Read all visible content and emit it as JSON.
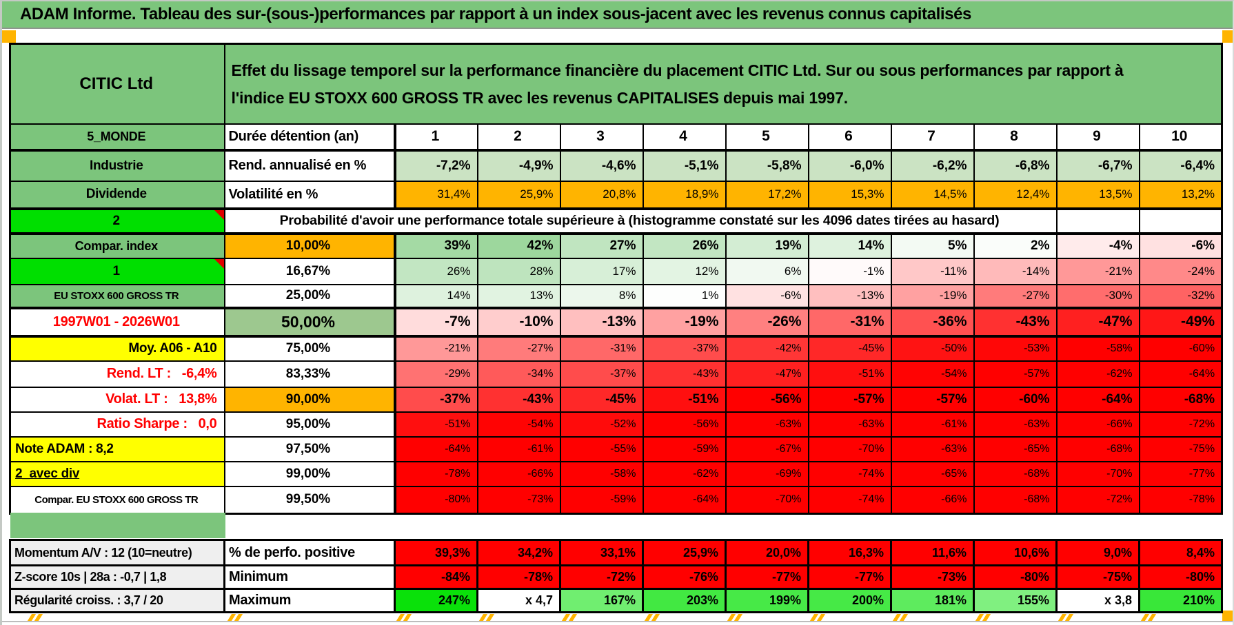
{
  "title": "ADAM Informe. Tableau des sur-(sous-)performances par rapport à un index sous-jacent avec les revenus connus capitalisés",
  "header": {
    "name": "CITIC Ltd",
    "description": "Effet du lissage temporel sur la performance financière du placement CITIC Ltd. Sur ou sous performances par rapport à l'indice EU STOXX 600 GROSS TR avec les revenus CAPITALISES depuis mai 1997."
  },
  "colors": {
    "green": "#7CC57C",
    "sage": "#9DC88F",
    "bright_green": "#00DF00",
    "light_green": "#CBE3C3",
    "orange": "#FFB400",
    "yellow": "#FFFF00",
    "red": "#FF0000",
    "gray_label": "#EFEFEF"
  },
  "table": {
    "duration_header": {
      "label_a": "5_MONDE",
      "label_b": "Durée détention (an)"
    },
    "durations": [
      "1",
      "2",
      "3",
      "4",
      "5",
      "6",
      "7",
      "8",
      "9",
      "10"
    ],
    "annualized": {
      "label_a": "Industrie",
      "label_b": "Rend. annualisé en %",
      "values": [
        "-7,2%",
        "-4,9%",
        "-4,6%",
        "-5,1%",
        "-5,8%",
        "-6,0%",
        "-6,2%",
        "-6,8%",
        "-6,7%",
        "-6,4%"
      ]
    },
    "volatility": {
      "label_a": "Dividende",
      "label_b": "Volatilité en %",
      "values": [
        "31,4%",
        "25,9%",
        "20,8%",
        "18,9%",
        "17,2%",
        "15,3%",
        "14,5%",
        "12,4%",
        "13,5%",
        "13,2%"
      ]
    },
    "probability": {
      "corner_label": "2",
      "banner": "Probabilité d'avoir une performance totale supérieure à (histogramme constaté sur les 4096 dates tirées au hasard)",
      "rows": [
        {
          "label": "Compar. index",
          "label_style": "green",
          "threshold": "10,00%",
          "threshold_style": "orange",
          "values": [
            39,
            42,
            27,
            26,
            19,
            14,
            5,
            2,
            -4,
            -6
          ],
          "value_weight": "bold"
        },
        {
          "label": "1",
          "label_style": "bright-note",
          "threshold": "16,67%",
          "threshold_style": "white",
          "values": [
            26,
            28,
            17,
            12,
            6,
            -1,
            -11,
            -14,
            -21,
            -24
          ],
          "value_weight": "normal"
        },
        {
          "label": "EU STOXX 600 GROSS TR",
          "label_style": "green-small",
          "threshold": "25,00%",
          "threshold_style": "white",
          "values": [
            14,
            13,
            8,
            1,
            -6,
            -13,
            -19,
            -27,
            -30,
            -32
          ],
          "value_weight": "normal"
        },
        {
          "label": "1997W01 - 2026W01",
          "label_style": "red-center",
          "threshold": "50,00%",
          "threshold_style": "sage-big",
          "values": [
            -7,
            -10,
            -13,
            -19,
            -26,
            -31,
            -36,
            -43,
            -47,
            -49
          ],
          "value_weight": "big"
        },
        {
          "label": "Moy. A06 - A10",
          "label_style": "yellow-right",
          "threshold": "75,00%",
          "threshold_style": "white",
          "values": [
            -21,
            -27,
            -31,
            -37,
            -42,
            -45,
            -50,
            -53,
            -58,
            -60
          ],
          "value_weight": "small"
        },
        {
          "label": "Rend. LT :   -6,4%",
          "label_style": "red-right",
          "threshold": "83,33%",
          "threshold_style": "white",
          "values": [
            -29,
            -34,
            -37,
            -43,
            -47,
            -51,
            -54,
            -57,
            -62,
            -64
          ],
          "value_weight": "small"
        },
        {
          "label": "Volat. LT :   13,8%",
          "label_style": "red-right",
          "threshold": "90,00%",
          "threshold_style": "orange",
          "values": [
            -37,
            -43,
            -45,
            -51,
            -56,
            -57,
            -57,
            -60,
            -64,
            -68
          ],
          "value_weight": "bold"
        },
        {
          "label": "Ratio Sharpe :   0,0",
          "label_style": "red-right",
          "threshold": "95,00%",
          "threshold_style": "white",
          "values": [
            -51,
            -54,
            -52,
            -56,
            -63,
            -63,
            -61,
            -63,
            -66,
            -72
          ],
          "value_weight": "small"
        },
        {
          "label": "Note ADAM : 8,2",
          "label_style": "yellow-left",
          "threshold": "97,50%",
          "threshold_style": "white",
          "values": [
            -64,
            -61,
            -55,
            -59,
            -67,
            -70,
            -63,
            -65,
            -68,
            -75
          ],
          "value_weight": "small"
        },
        {
          "label": "2_avec div",
          "label_style": "yellow-left-underline",
          "threshold": "99,00%",
          "threshold_style": "white",
          "values": [
            -78,
            -66,
            -58,
            -62,
            -69,
            -74,
            -65,
            -68,
            -70,
            -77
          ],
          "value_weight": "small"
        },
        {
          "label": "Compar. EU STOXX 600 GROSS TR",
          "label_style": "white-small",
          "threshold": "99,50%",
          "threshold_style": "white",
          "values": [
            -80,
            -73,
            -59,
            -64,
            -70,
            -74,
            -66,
            -68,
            -72,
            -78
          ],
          "value_weight": "small"
        }
      ]
    }
  },
  "stats": {
    "left_labels": [
      "Momentum A/V : 12 (10=neutre)",
      "Z-score 10s | 28a : -0,7 | 1,8",
      "Régularité croiss. : 3,7 / 20"
    ],
    "rows": [
      {
        "label": "% de perfo. positive",
        "style": "red",
        "values": [
          "39,3%",
          "34,2%",
          "33,1%",
          "25,9%",
          "20,0%",
          "16,3%",
          "11,6%",
          "10,6%",
          "9,0%",
          "8,4%"
        ]
      },
      {
        "label": "Minimum",
        "style": "red",
        "values": [
          "-84%",
          "-78%",
          "-72%",
          "-76%",
          "-77%",
          "-77%",
          "-73%",
          "-80%",
          "-75%",
          "-80%"
        ]
      },
      {
        "label": "Maximum",
        "style": "green-scale",
        "values": [
          "247%",
          "x 4,7",
          "167%",
          "203%",
          "199%",
          "200%",
          "181%",
          "155%",
          "x 3,8",
          "210%"
        ],
        "numeric": [
          247,
          null,
          167,
          203,
          199,
          200,
          181,
          155,
          null,
          210
        ]
      }
    ]
  }
}
